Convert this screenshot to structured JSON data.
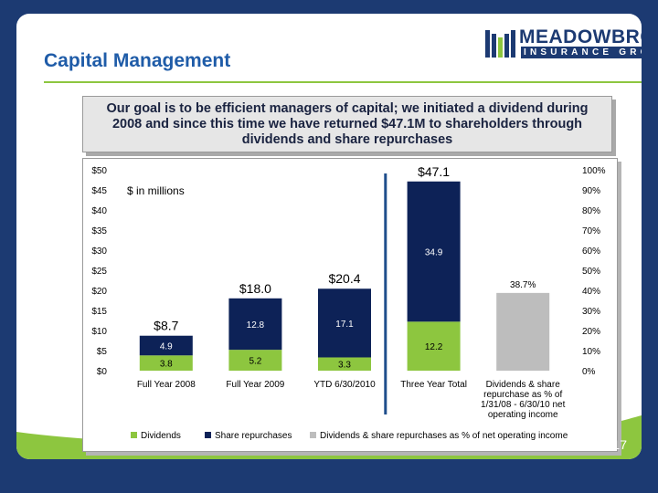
{
  "logo": {
    "name": "MEADOWBROOK",
    "sub": "INSURANCE GROUP"
  },
  "slide_title": "Capital Management",
  "goal_text": "Our goal is to be efficient managers of capital; we initiated a dividend during 2008 and since this time we have returned $47.1M to shareholders through dividends and share repurchases",
  "page_number": "17",
  "colors": {
    "dividends": "#8dc63f",
    "repurchases": "#0d2257",
    "pct": "#bdbdbd",
    "title": "#1f5ca8",
    "background": "#1c3a72"
  },
  "chart_data": {
    "type": "bar",
    "stacked": true,
    "annotation": "$ in millions",
    "categories": [
      [
        "Full Year 2008"
      ],
      [
        "Full Year 2009"
      ],
      [
        "YTD 6/30/2010"
      ],
      [
        "Three Year Total"
      ],
      [
        "Dividends & share",
        "repurchase as % of",
        "1/31/08 - 6/30/10 net",
        "operating income"
      ]
    ],
    "series": [
      {
        "name": "Dividends",
        "values": [
          3.8,
          5.2,
          3.3,
          12.2,
          null
        ],
        "labels": [
          "3.8",
          "5.2",
          "3.3",
          "12.2",
          ""
        ]
      },
      {
        "name": "Share repurchases",
        "values": [
          4.9,
          12.8,
          17.1,
          34.9,
          null
        ],
        "labels": [
          "4.9",
          "12.8",
          "17.1",
          "34.9",
          ""
        ]
      },
      {
        "name": "Dividends & share repurchases as % of net operating income",
        "axis": "right",
        "values": [
          null,
          null,
          null,
          null,
          38.7
        ],
        "labels": [
          "",
          "",
          "",
          "",
          "38.7%"
        ]
      }
    ],
    "totals": [
      "$8.7",
      "$18.0",
      "$20.4",
      "$47.1",
      ""
    ],
    "y_left": {
      "min": 0,
      "max": 50,
      "step": 5,
      "prefix": "$"
    },
    "y_right": {
      "min": 0,
      "max": 100,
      "step": 10,
      "suffix": "%"
    },
    "grid": false,
    "legend_position": "bottom",
    "divider": "vertical line between YTD 6/30/2010 and Three Year Total"
  }
}
